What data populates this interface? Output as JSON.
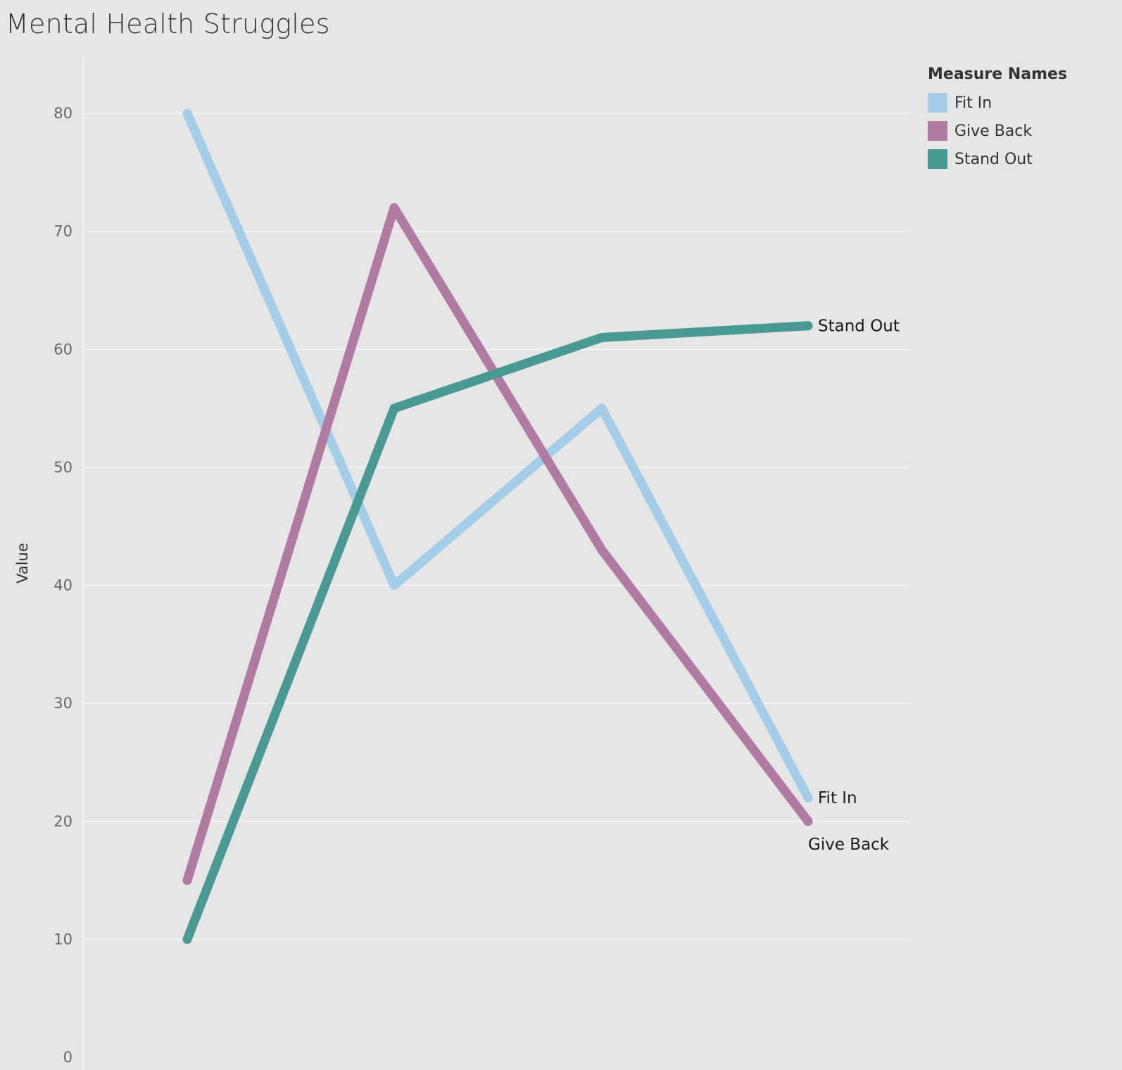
{
  "chart_data": {
    "type": "line",
    "title": "Mental Health Struggles",
    "xlabel": "",
    "ylabel": "Value",
    "categories": [
      "",
      "",
      "",
      ""
    ],
    "ylim": [
      0,
      80
    ],
    "yticks": [
      0,
      10,
      20,
      30,
      40,
      50,
      60,
      70,
      80
    ],
    "grid": true,
    "series": [
      {
        "name": "Fit In",
        "color": "#a3cde8",
        "values": [
          80,
          40,
          55,
          22
        ]
      },
      {
        "name": "Give Back",
        "color": "#b07aa1",
        "values": [
          15,
          72,
          43,
          20
        ]
      },
      {
        "name": "Stand Out",
        "color": "#4a9a94",
        "values": [
          10,
          55,
          61,
          62
        ]
      }
    ],
    "legend": {
      "title": "Measure Names",
      "position": "top-right"
    }
  }
}
